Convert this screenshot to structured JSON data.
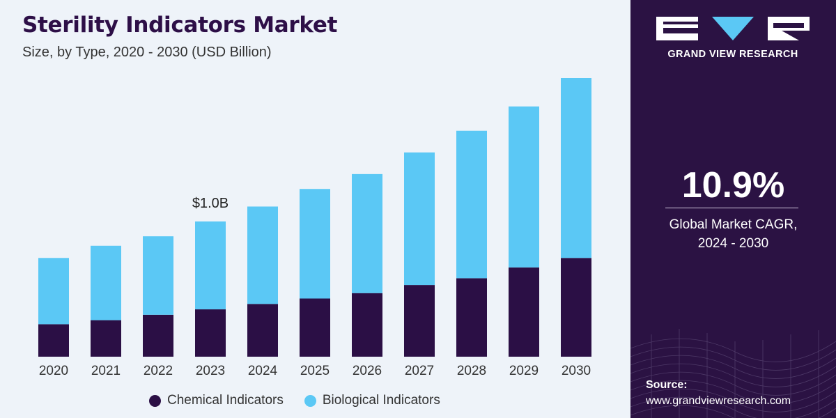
{
  "colors": {
    "chemical": "#2b0f45",
    "biological": "#5bc8f5",
    "panel": "#2b1243",
    "background": "#eef3f9"
  },
  "chart_data": {
    "type": "bar",
    "stacked": true,
    "title": "Sterility Indicators Market",
    "subtitle": "Size, by Type, 2020 - 2030 (USD Billion)",
    "xlabel": "",
    "ylabel": "",
    "categories": [
      "2020",
      "2021",
      "2022",
      "2023",
      "2024",
      "2025",
      "2026",
      "2027",
      "2028",
      "2029",
      "2030"
    ],
    "series": [
      {
        "name": "Chemical Indicators",
        "values": [
          0.24,
          0.27,
          0.31,
          0.35,
          0.39,
          0.43,
          0.47,
          0.53,
          0.58,
          0.66,
          0.73
        ]
      },
      {
        "name": "Biological Indicators",
        "values": [
          0.49,
          0.55,
          0.58,
          0.65,
          0.72,
          0.81,
          0.88,
          0.98,
          1.09,
          1.19,
          1.33
        ]
      }
    ],
    "ylim": [
      0,
      2.06
    ],
    "grid": false,
    "legend_position": "bottom",
    "annotations": [
      {
        "category": "2023",
        "text": "$1.0B"
      }
    ]
  },
  "sidebar": {
    "logo_text": "GRAND VIEW RESEARCH",
    "cagr_value": "10.9%",
    "cagr_label_line1": "Global Market CAGR,",
    "cagr_label_line2": "2024 - 2030",
    "source_title": "Source:",
    "source_url": "www.grandviewresearch.com"
  }
}
